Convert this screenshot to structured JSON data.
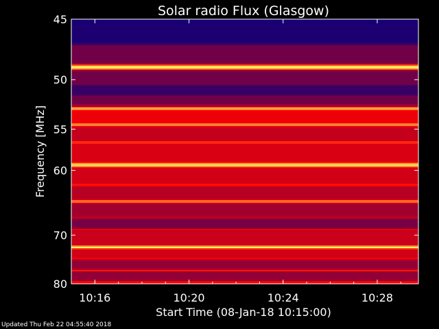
{
  "chart_data": {
    "type": "heatmap",
    "title": "Solar radio Flux (Glasgow)",
    "xlabel": "Start Time (08-Jan-18 10:15:00)",
    "ylabel": "Frequency [MHz]",
    "y_ticks": [
      {
        "value": 45,
        "label": "45"
      },
      {
        "value": 50,
        "label": "50"
      },
      {
        "value": 55,
        "label": "55"
      },
      {
        "value": 60,
        "label": "60"
      },
      {
        "value": 70,
        "label": "70"
      },
      {
        "value": 80,
        "label": "80"
      }
    ],
    "x_ticks": [
      {
        "value": "10:16",
        "label": "10:16"
      },
      {
        "value": "10:20",
        "label": "10:20"
      },
      {
        "value": "10:24",
        "label": "10:24"
      },
      {
        "value": "10:28",
        "label": "10:28"
      }
    ],
    "xlim": [
      "10:15:00",
      "10:29:45"
    ],
    "ylim": [
      80,
      45
    ],
    "y_scale": "reciprocal",
    "bands": [
      {
        "freq": 45.5,
        "level": 0.08
      },
      {
        "freq": 47,
        "level": 0.12
      },
      {
        "freq": 48.9,
        "level": 1.0
      },
      {
        "freq": 50.5,
        "level": 0.15
      },
      {
        "freq": 51.6,
        "level": 0.25
      },
      {
        "freq": 52.8,
        "level": 0.9
      },
      {
        "freq": 54.5,
        "level": 0.8
      },
      {
        "freq": 56.5,
        "level": 0.6
      },
      {
        "freq": 59.3,
        "level": 0.95
      },
      {
        "freq": 62,
        "level": 0.55
      },
      {
        "freq": 64.4,
        "level": 0.75
      },
      {
        "freq": 67,
        "level": 0.4
      },
      {
        "freq": 69,
        "level": 0.45
      },
      {
        "freq": 72.3,
        "level": 1.0
      },
      {
        "freq": 74.5,
        "level": 0.5
      },
      {
        "freq": 77,
        "level": 0.55
      },
      {
        "freq": 79.5,
        "level": 0.5
      }
    ],
    "colors": {
      "low": "#000080",
      "mid": "#ff0000",
      "high": "#ffff60"
    }
  },
  "footer": {
    "updated": "Updated Thu Feb 22 04:55:40 2018"
  }
}
